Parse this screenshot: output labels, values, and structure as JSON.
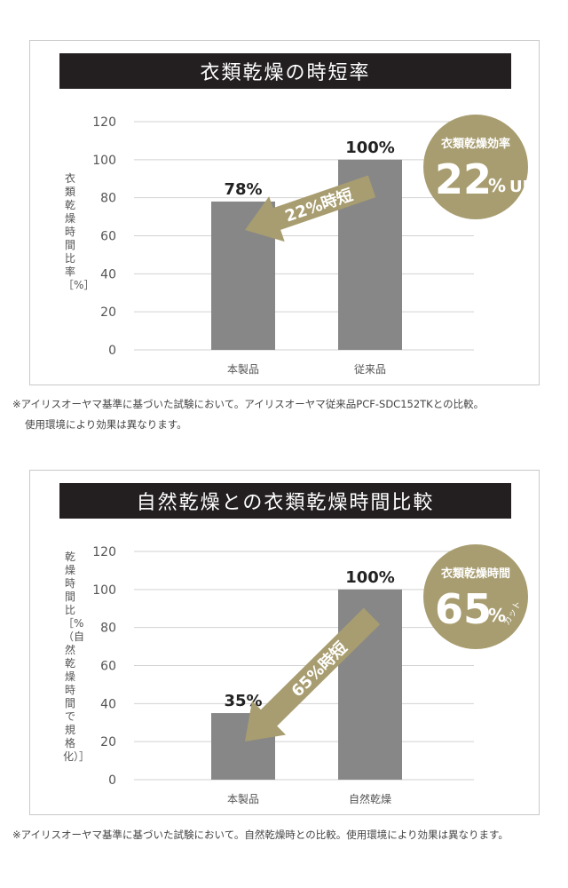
{
  "colors": {
    "title_bg": "#231f20",
    "bar": "#878787",
    "accent_gold": "#a89d70",
    "grid": "#d2d2d2",
    "text": "#444444"
  },
  "chart_data": [
    {
      "type": "bar",
      "title": "衣類乾燥の時短率",
      "ylabel": "衣類乾燥時間比率［%］",
      "categories": [
        "本製品",
        "従来品"
      ],
      "values": [
        78,
        100
      ],
      "value_labels": [
        "78%",
        "100%"
      ],
      "ylim": [
        0,
        120
      ],
      "yticks": [
        0,
        20,
        40,
        60,
        80,
        100,
        120
      ],
      "grid": true,
      "arrow_label": "22%時短",
      "badge": {
        "top": "衣類乾燥効率",
        "big": "22",
        "unit": "%",
        "suffix": "UP"
      }
    },
    {
      "type": "bar",
      "title": "自然乾燥との衣類乾燥時間比較",
      "ylabel": "乾燥時間比［%（自然乾燥時間で規格化）］",
      "categories": [
        "本製品",
        "自然乾燥"
      ],
      "values": [
        35,
        100
      ],
      "value_labels": [
        "35%",
        "100%"
      ],
      "ylim": [
        0,
        120
      ],
      "yticks": [
        0,
        20,
        40,
        60,
        80,
        100,
        120
      ],
      "grid": true,
      "arrow_label": "65%時短",
      "badge": {
        "top": "衣類乾燥時間",
        "big": "65",
        "unit": "%",
        "suffix": "カット"
      }
    }
  ],
  "notes": [
    [
      "※アイリスオーヤマ基準に基づいた試験において。アイリスオーヤマ従来品PCF-SDC152TKとの比較。",
      "使用環境により効果は異なります。"
    ],
    [
      "※アイリスオーヤマ基準に基づいた試験において。自然乾燥時との比較。使用環境により効果は異なります。"
    ]
  ]
}
